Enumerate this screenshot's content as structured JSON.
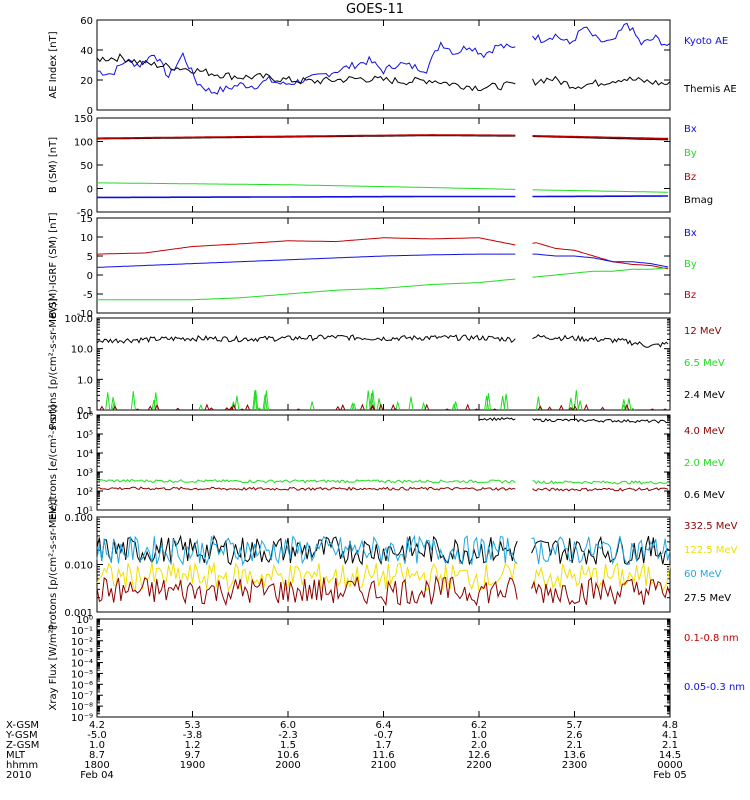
{
  "title": "GOES-11",
  "colors": {
    "black": "#000000",
    "blue": "#1010e0",
    "red": "#c00000",
    "green": "#20dd20",
    "darkred": "#8b0000",
    "yellow": "#f0e000",
    "cyan": "#1ea8e0"
  },
  "chart_data": [
    {
      "id": "ae",
      "type": "line",
      "ylabel": "AE Index [nT]",
      "ylim": [
        0,
        60
      ],
      "log": false,
      "yticks": [
        "0",
        "20",
        "40",
        "60"
      ],
      "legend": [
        {
          "name": "Kyoto AE",
          "color": "blue"
        },
        {
          "name": "Themis AE",
          "color": "black"
        }
      ],
      "series": [
        {
          "name": "Kyoto AE",
          "color": "blue",
          "x": [
            0,
            3,
            6,
            9,
            12,
            15,
            18,
            21,
            24,
            27,
            30,
            33,
            36,
            39,
            42,
            45,
            48,
            51,
            54,
            57,
            60,
            63,
            66,
            69,
            72,
            75,
            78,
            81,
            84,
            87,
            90,
            93,
            96,
            99,
            102,
            105,
            108,
            111,
            114,
            117,
            120
          ],
          "y": [
            26,
            24,
            33,
            30,
            38,
            22,
            37,
            18,
            12,
            14,
            17,
            16,
            20,
            17,
            19,
            21,
            24,
            27,
            30,
            33,
            26,
            31,
            29,
            27,
            45,
            38,
            43,
            37,
            43,
            41,
            52,
            47,
            50,
            44,
            55,
            46,
            45,
            58,
            44,
            48,
            42
          ]
        },
        {
          "name": "Themis AE",
          "color": "black",
          "x": [
            0,
            5,
            10,
            15,
            20,
            25,
            30,
            35,
            40,
            45,
            50,
            55,
            60,
            65,
            70,
            75,
            80,
            85,
            90,
            95,
            100,
            105,
            110,
            115,
            120
          ],
          "y": [
            34,
            35,
            31,
            29,
            27,
            24,
            22,
            22,
            20,
            19,
            20,
            21,
            20,
            19,
            20,
            17,
            15,
            16,
            18,
            21,
            16,
            18,
            21,
            19,
            17
          ]
        }
      ]
    },
    {
      "id": "bsm",
      "type": "line",
      "ylabel": "B (SM) [nT]",
      "ylim": [
        -50,
        150
      ],
      "log": false,
      "yticks": [
        "-50",
        "0",
        "50",
        "100",
        "150"
      ],
      "legend": [
        {
          "name": "Bx",
          "color": "blue"
        },
        {
          "name": "By",
          "color": "green"
        },
        {
          "name": "Bz",
          "color": "red"
        },
        {
          "name": "Bmag",
          "color": "black"
        }
      ],
      "series": [
        {
          "name": "Bmag",
          "color": "black",
          "x": [
            0,
            40,
            70,
            88,
            92,
            120
          ],
          "y": [
            106,
            110,
            113,
            112,
            111,
            104
          ]
        },
        {
          "name": "Bz",
          "color": "red",
          "x": [
            0,
            40,
            70,
            88,
            92,
            120
          ],
          "y": [
            107,
            111,
            114,
            113,
            112,
            106
          ]
        },
        {
          "name": "By",
          "color": "green",
          "x": [
            0,
            40,
            70,
            88,
            92,
            120
          ],
          "y": [
            12,
            8,
            2,
            -2,
            -3,
            -8
          ]
        },
        {
          "name": "Bx",
          "color": "blue",
          "x": [
            0,
            40,
            70,
            88,
            92,
            120
          ],
          "y": [
            -19,
            -18,
            -17,
            -17,
            -17,
            -16
          ]
        }
      ]
    },
    {
      "id": "bigrf",
      "type": "line",
      "ylabel": "B(SM)-IGRF (SM) [nT]",
      "ylim": [
        -10,
        15
      ],
      "log": false,
      "yticks": [
        "-10",
        "-5",
        "0",
        "5",
        "10",
        "15"
      ],
      "legend": [
        {
          "name": "Bx",
          "color": "blue"
        },
        {
          "name": "By",
          "color": "green"
        },
        {
          "name": "Bz",
          "color": "red"
        }
      ],
      "series": [
        {
          "name": "Bz",
          "color": "red",
          "x": [
            0,
            10,
            20,
            30,
            40,
            50,
            60,
            70,
            80,
            88,
            92,
            96,
            100,
            104,
            108,
            112,
            116,
            120
          ],
          "y": [
            5.5,
            5.8,
            7.5,
            8.2,
            9,
            8.8,
            9.8,
            9.5,
            9.8,
            7.8,
            8.5,
            7,
            6.5,
            5,
            3.5,
            2.8,
            2.5,
            1.5
          ]
        },
        {
          "name": "Bx",
          "color": "blue",
          "x": [
            0,
            10,
            20,
            30,
            40,
            50,
            60,
            70,
            80,
            88,
            92,
            96,
            100,
            104,
            108,
            112,
            116,
            120
          ],
          "y": [
            2,
            2.5,
            3,
            3.5,
            4,
            4.5,
            5,
            5.3,
            5.5,
            5.5,
            5.5,
            5,
            5,
            4.5,
            3.5,
            3.5,
            3,
            2
          ]
        },
        {
          "name": "By",
          "color": "green",
          "x": [
            0,
            10,
            20,
            30,
            40,
            50,
            60,
            70,
            80,
            88,
            92,
            96,
            100,
            104,
            108,
            112,
            116,
            120
          ],
          "y": [
            -6.5,
            -6.5,
            -6.5,
            -6,
            -5,
            -4,
            -3.5,
            -2.5,
            -2,
            -1,
            -0.5,
            0,
            0.5,
            1,
            1,
            1.5,
            1.5,
            2
          ]
        }
      ]
    },
    {
      "id": "protons1",
      "type": "line",
      "ylabel": "Protons [p/(cm²-s-sr-MeV)]",
      "ylim": [
        0.1,
        100
      ],
      "log": true,
      "yticks": [
        "0.1",
        "1.0",
        "10.0",
        "100.0"
      ],
      "legend": [
        {
          "name": "12 MeV",
          "color": "darkred"
        },
        {
          "name": "6.5 MeV",
          "color": "green"
        },
        {
          "name": "2.4 MeV",
          "color": "black"
        }
      ],
      "series": [
        {
          "name": "2.4 MeV",
          "color": "black",
          "x": [
            0,
            10,
            20,
            30,
            40,
            50,
            60,
            70,
            80,
            88,
            91,
            100,
            110,
            116,
            120
          ],
          "y": [
            18,
            20,
            22,
            21,
            22,
            24,
            22,
            23,
            23,
            20,
            25,
            22,
            18,
            12,
            15
          ]
        },
        {
          "name": "6.5 MeV",
          "color": "green",
          "x": [],
          "y": [],
          "note": "sporadic spikes near 0.1–0.4"
        },
        {
          "name": "12 MeV",
          "color": "darkred",
          "x": [],
          "y": [],
          "note": "sporadic spikes near 0.1–0.15"
        }
      ]
    },
    {
      "id": "electrons",
      "type": "line",
      "ylabel": "Electrons [e/(cm²-s-sr)]",
      "ylim": [
        10,
        1000000
      ],
      "log": true,
      "yticks": [
        "10¹",
        "10²",
        "10³",
        "10⁴",
        "10⁵",
        "10⁶"
      ],
      "legend": [
        {
          "name": "4.0 MeV",
          "color": "darkred"
        },
        {
          "name": "2.0 MeV",
          "color": "green"
        },
        {
          "name": "0.6 MeV",
          "color": "black"
        }
      ],
      "series": [
        {
          "name": "0.6 MeV",
          "color": "black",
          "x": [
            80,
            88,
            91,
            110,
            120
          ],
          "y": [
            650000,
            600000,
            550000,
            500000,
            450000
          ]
        },
        {
          "name": "2.0 MeV",
          "color": "green",
          "x": [
            0,
            30,
            60,
            88,
            91,
            120
          ],
          "y": [
            350,
            330,
            330,
            320,
            300,
            280
          ]
        },
        {
          "name": "4.0 MeV",
          "color": "darkred",
          "x": [
            0,
            30,
            60,
            88,
            91,
            120
          ],
          "y": [
            140,
            130,
            135,
            130,
            120,
            125
          ]
        }
      ]
    },
    {
      "id": "protons2",
      "type": "line",
      "ylabel": "Protons [p/(cm²-s-sr-MeV)]",
      "ylim": [
        0.001,
        0.1
      ],
      "log": true,
      "yticks": [
        "0.001",
        "0.010",
        "0.100"
      ],
      "legend": [
        {
          "name": "332.5 MeV",
          "color": "darkred"
        },
        {
          "name": "122.5 MeV",
          "color": "yellow"
        },
        {
          "name": "60 MeV",
          "color": "cyan"
        },
        {
          "name": "27.5 MeV",
          "color": "black"
        }
      ],
      "series": [
        {
          "name": "27.5 MeV",
          "color": "black",
          "x": [
            0,
            120
          ],
          "y": [
            0.02,
            0.02
          ],
          "note": "noisy"
        },
        {
          "name": "60 MeV",
          "color": "cyan",
          "x": [
            0,
            120
          ],
          "y": [
            0.02,
            0.02
          ],
          "note": "noisy"
        },
        {
          "name": "122.5 MeV",
          "color": "yellow",
          "x": [
            0,
            120
          ],
          "y": [
            0.0055,
            0.0055
          ],
          "note": "noisy"
        },
        {
          "name": "332.5 MeV",
          "color": "darkred",
          "x": [
            0,
            120
          ],
          "y": [
            0.0028,
            0.0028
          ],
          "note": "noisy"
        }
      ]
    },
    {
      "id": "xray",
      "type": "line",
      "ylabel": "Xray Flux [W/m²]",
      "ylim": [
        1e-09,
        1
      ],
      "log": true,
      "yticks": [
        "10⁻⁹",
        "10⁻⁸",
        "10⁻⁷",
        "10⁻⁶",
        "10⁻⁵",
        "10⁻⁴",
        "10⁻³",
        "10⁻²",
        "10⁻¹",
        "10⁰"
      ],
      "legend": [
        {
          "name": "0.1-0.8 nm",
          "color": "red"
        },
        {
          "name": "0.05-0.3 nm",
          "color": "blue"
        }
      ],
      "series": []
    }
  ],
  "xaxis": {
    "row_labels": [
      "X-GSM",
      "Y-GSM",
      "Z-GSM",
      "MLT",
      "hhmm",
      "2010"
    ],
    "columns": [
      {
        "values": [
          "4.2",
          "-5.0",
          "1.0",
          "8.7",
          "1800",
          "Feb 04"
        ]
      },
      {
        "values": [
          "5.3",
          "-3.8",
          "1.2",
          "9.7",
          "1900",
          ""
        ]
      },
      {
        "values": [
          "6.0",
          "-2.3",
          "1.5",
          "10.6",
          "2000",
          ""
        ]
      },
      {
        "values": [
          "6.4",
          "-0.7",
          "1.7",
          "11.6",
          "2100",
          ""
        ]
      },
      {
        "values": [
          "6.2",
          "1.0",
          "2.0",
          "12.6",
          "2200",
          ""
        ]
      },
      {
        "values": [
          "5.7",
          "2.6",
          "2.1",
          "13.6",
          "2300",
          ""
        ]
      },
      {
        "values": [
          "4.8",
          "4.1",
          "2.1",
          "14.5",
          "0000",
          "Feb 05"
        ]
      }
    ]
  }
}
